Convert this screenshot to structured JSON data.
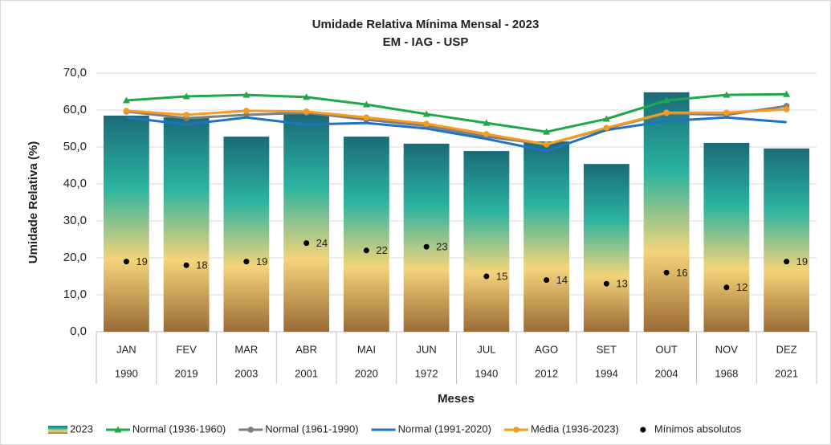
{
  "chart_data": {
    "type": "combo",
    "title": "Umidade Relativa Mínima Mensal - 2023",
    "subtitle": "EM - IAG - USP",
    "x_label": "Meses",
    "y_label": "Umidade Relativa (%)",
    "categories": [
      "JAN",
      "FEV",
      "MAR",
      "ABR",
      "MAI",
      "JUN",
      "JUL",
      "AGO",
      "SET",
      "OUT",
      "NOV",
      "DEZ"
    ],
    "category_years": [
      "1990",
      "2019",
      "2003",
      "2001",
      "2020",
      "1972",
      "1940",
      "2012",
      "1994",
      "2004",
      "1968",
      "2021"
    ],
    "ylim": [
      0,
      70
    ],
    "yticks": [
      {
        "value": 0,
        "label": "0,0"
      },
      {
        "value": 10,
        "label": "10,0"
      },
      {
        "value": 20,
        "label": "20,0"
      },
      {
        "value": 30,
        "label": "30,0"
      },
      {
        "value": 40,
        "label": "40,0"
      },
      {
        "value": 50,
        "label": "50,0"
      },
      {
        "value": 60,
        "label": "60,0"
      },
      {
        "value": 70,
        "label": "70,0"
      }
    ],
    "grid": true,
    "legend": "bottom",
    "series": [
      {
        "name": "2023",
        "type": "bar",
        "colors": [
          "#1b6b78",
          "#2bb3a0",
          "#f4d47a",
          "#9b6a36"
        ],
        "values": [
          58.5,
          58.0,
          52.8,
          58.9,
          52.8,
          50.9,
          48.9,
          51.5,
          45.4,
          64.8,
          51.1,
          49.6
        ]
      },
      {
        "name": "Normal (1936-1960)",
        "type": "line",
        "marker": "triangle",
        "color": "#1fa84a",
        "values": [
          62.6,
          63.7,
          64.1,
          63.5,
          61.5,
          58.9,
          56.5,
          54.1,
          57.6,
          62.6,
          64.1,
          64.3
        ]
      },
      {
        "name": "Normal (1961-1990)",
        "type": "line",
        "marker": "circle",
        "color": "#7f7f7f",
        "values": [
          59.6,
          57.8,
          58.7,
          59.3,
          57.4,
          55.7,
          52.8,
          50.7,
          55.0,
          59.1,
          58.7,
          61.1
        ]
      },
      {
        "name": "Normal (1991-2020)",
        "type": "line",
        "marker": "none",
        "color": "#2272c3",
        "values": [
          58.0,
          56.1,
          58.0,
          56.1,
          56.5,
          55.0,
          52.2,
          48.9,
          54.6,
          57.0,
          58.0,
          56.7
        ]
      },
      {
        "name": "Média (1936-2023)",
        "type": "line",
        "marker": "circle",
        "color": "#f39c1f",
        "values": [
          59.8,
          58.7,
          59.8,
          59.6,
          58.0,
          56.3,
          53.5,
          50.7,
          55.2,
          59.3,
          59.3,
          60.2
        ]
      },
      {
        "name": "Mínimos absolutos",
        "type": "scatter",
        "color": "#000000",
        "values": [
          19,
          18,
          19,
          24,
          22,
          23,
          15,
          14,
          13,
          16,
          12,
          19
        ]
      }
    ]
  }
}
